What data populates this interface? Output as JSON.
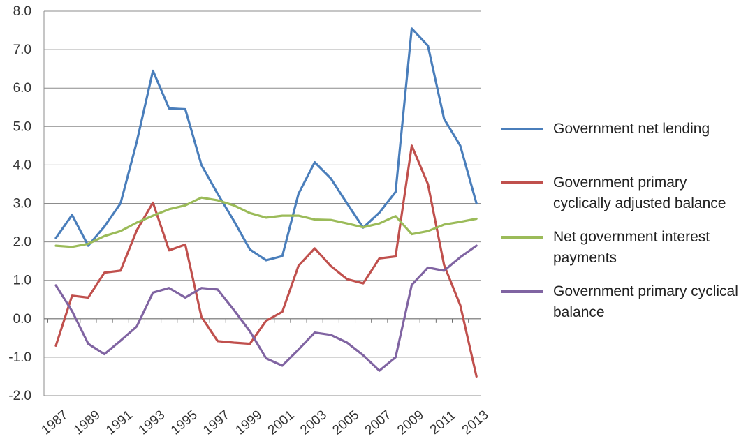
{
  "chart_data": {
    "type": "line",
    "title": "",
    "xlabel": "",
    "ylabel": "",
    "ylim": [
      -2.0,
      8.0
    ],
    "yticks": [
      "-2.0",
      "-1.0",
      "0.0",
      "1.0",
      "2.0",
      "3.0",
      "4.0",
      "5.0",
      "6.0",
      "7.0",
      "8.0"
    ],
    "x": [
      1987,
      1988,
      1989,
      1990,
      1991,
      1992,
      1993,
      1994,
      1995,
      1996,
      1997,
      1998,
      1999,
      2000,
      2001,
      2002,
      2003,
      2004,
      2005,
      2006,
      2007,
      2008,
      2009,
      2010,
      2011,
      2012,
      2013
    ],
    "xtick_labels": [
      "1987",
      "1989",
      "1991",
      "1993",
      "1995",
      "1997",
      "1999",
      "2001",
      "2003",
      "2005",
      "2007",
      "2009",
      "2011",
      "2013"
    ],
    "grid": "horizontal",
    "legend_position": "right",
    "series": [
      {
        "name": "Government net lending",
        "color": "#4a7ebb",
        "values": [
          2.1,
          2.7,
          1.9,
          2.4,
          3.0,
          4.6,
          6.45,
          5.47,
          5.45,
          4.0,
          3.25,
          2.55,
          1.8,
          1.52,
          1.63,
          3.25,
          4.07,
          3.65,
          3.0,
          2.37,
          2.76,
          3.3,
          7.55,
          7.1,
          5.2,
          4.5,
          3.0
        ]
      },
      {
        "name": "Government primary cyclically adjusted balance",
        "color": "#c0504d",
        "values": [
          -0.7,
          0.6,
          0.55,
          1.2,
          1.25,
          2.3,
          3.02,
          1.78,
          1.93,
          0.05,
          -0.58,
          -0.62,
          -0.65,
          -0.05,
          0.18,
          1.38,
          1.83,
          1.37,
          1.03,
          0.92,
          1.57,
          1.62,
          4.5,
          3.5,
          1.4,
          0.35,
          -1.5
        ]
      },
      {
        "name": "Net government interest payments",
        "color": "#9bbb59",
        "values": [
          1.9,
          1.87,
          1.95,
          2.15,
          2.28,
          2.5,
          2.68,
          2.85,
          2.95,
          3.15,
          3.08,
          2.95,
          2.75,
          2.63,
          2.68,
          2.68,
          2.58,
          2.57,
          2.48,
          2.38,
          2.48,
          2.67,
          2.2,
          2.28,
          2.45,
          2.52,
          2.6
        ]
      },
      {
        "name": "Government primary cyclical balance",
        "color": "#8064a2",
        "values": [
          0.87,
          0.2,
          -0.65,
          -0.92,
          -0.57,
          -0.2,
          0.68,
          0.8,
          0.55,
          0.8,
          0.76,
          0.23,
          -0.33,
          -1.03,
          -1.22,
          -0.8,
          -0.36,
          -0.42,
          -0.62,
          -0.95,
          -1.35,
          -1.0,
          0.88,
          1.33,
          1.25,
          1.6,
          1.9
        ]
      }
    ]
  }
}
